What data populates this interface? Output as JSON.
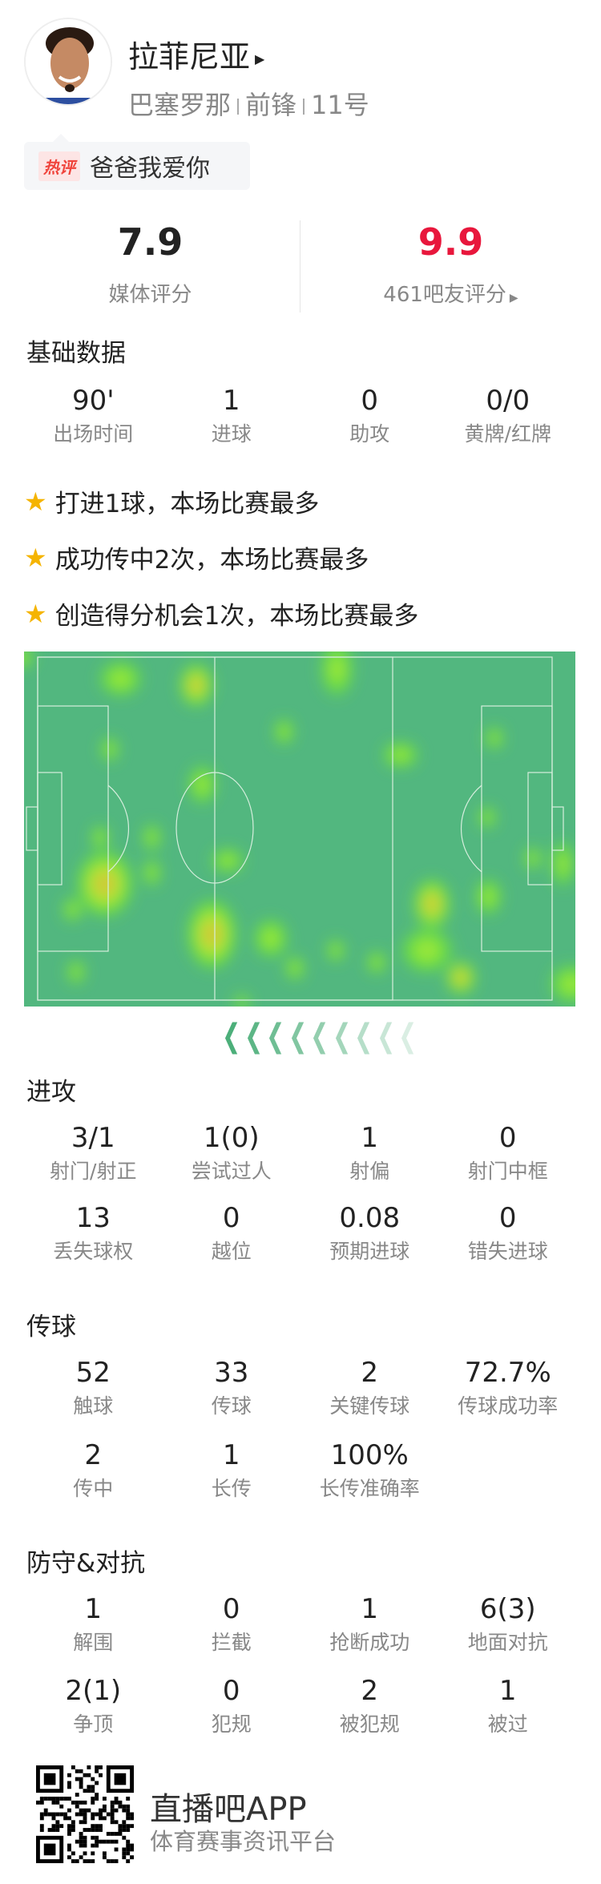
{
  "player": {
    "name": "拉菲尼亚",
    "team": "巴塞罗那",
    "position": "前锋",
    "number": "11号"
  },
  "hot_comment": {
    "tag": "热评",
    "text": "爸爸我爱你"
  },
  "ratings": {
    "media": {
      "value": "7.9",
      "label": "媒体评分"
    },
    "fans": {
      "value": "9.9",
      "label": "461吧友评分",
      "color": "#e8173c"
    }
  },
  "basic": {
    "title": "基础数据",
    "stats": [
      {
        "v": "90'",
        "l": "出场时间"
      },
      {
        "v": "1",
        "l": "进球"
      },
      {
        "v": "0",
        "l": "助攻"
      },
      {
        "v": "0/0",
        "l": "黄牌/红牌"
      }
    ]
  },
  "highlights": [
    "打进1球，本场比赛最多",
    "成功传中2次，本场比赛最多",
    "创造得分机会1次，本场比赛最多"
  ],
  "heatmap": {
    "pitch_color": "#52b77f",
    "attack_direction": "left"
  },
  "attack": {
    "title": "进攻",
    "stats": [
      {
        "v": "3/1",
        "l": "射门/射正"
      },
      {
        "v": "1(0)",
        "l": "尝试过人"
      },
      {
        "v": "1",
        "l": "射偏"
      },
      {
        "v": "0",
        "l": "射门中框"
      },
      {
        "v": "13",
        "l": "丢失球权"
      },
      {
        "v": "0",
        "l": "越位"
      },
      {
        "v": "0.08",
        "l": "预期进球"
      },
      {
        "v": "0",
        "l": "错失进球"
      }
    ]
  },
  "passing": {
    "title": "传球",
    "stats": [
      {
        "v": "52",
        "l": "触球"
      },
      {
        "v": "33",
        "l": "传球"
      },
      {
        "v": "2",
        "l": "关键传球"
      },
      {
        "v": "72.7%",
        "l": "传球成功率"
      },
      {
        "v": "2",
        "l": "传中"
      },
      {
        "v": "1",
        "l": "长传"
      },
      {
        "v": "100%",
        "l": "长传准确率"
      }
    ]
  },
  "defense": {
    "title": "防守&对抗",
    "stats": [
      {
        "v": "1",
        "l": "解围"
      },
      {
        "v": "0",
        "l": "拦截"
      },
      {
        "v": "1",
        "l": "抢断成功"
      },
      {
        "v": "6(3)",
        "l": "地面对抗"
      },
      {
        "v": "2(1)",
        "l": "争顶"
      },
      {
        "v": "0",
        "l": "犯规"
      },
      {
        "v": "2",
        "l": "被犯规"
      },
      {
        "v": "1",
        "l": "被过"
      }
    ]
  },
  "footer": {
    "app": "直播吧APP",
    "slogan": "体育赛事资讯平台"
  }
}
